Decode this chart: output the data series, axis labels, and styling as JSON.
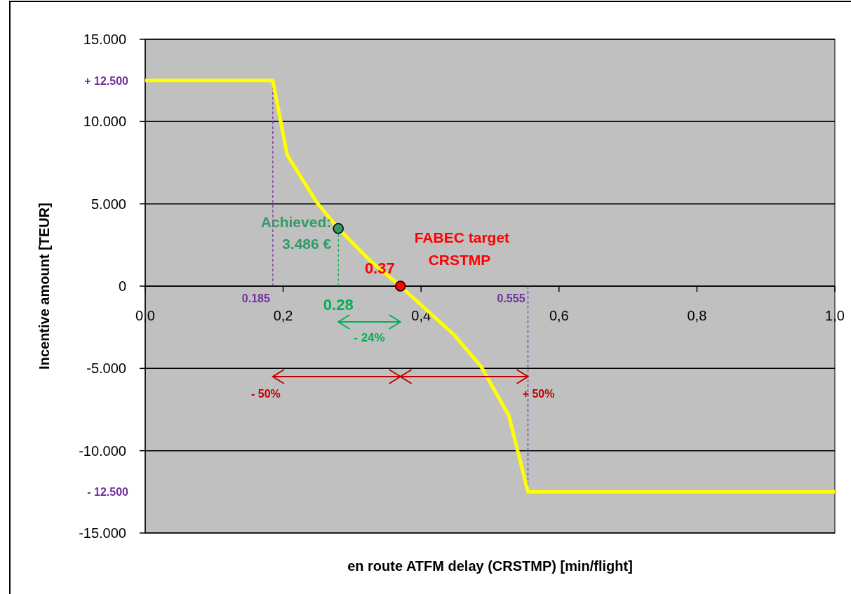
{
  "chart_data": {
    "type": "line",
    "xlabel": "en route ATFM delay (CRSTMP) [min/flight]",
    "ylabel": "Incentive amount [TEUR]",
    "xlim": [
      0,
      1
    ],
    "ylim": [
      -15000,
      15000
    ],
    "xticks": [
      {
        "value": 0,
        "label": "0,0"
      },
      {
        "value": 0.2,
        "label": "0,2"
      },
      {
        "value": 0.4,
        "label": "0,4"
      },
      {
        "value": 0.6,
        "label": "0,6"
      },
      {
        "value": 0.8,
        "label": "0,8"
      },
      {
        "value": 1,
        "label": "1,0"
      }
    ],
    "yticks": [
      {
        "value": -15000,
        "label": "-15.000"
      },
      {
        "value": -10000,
        "label": "-10.000"
      },
      {
        "value": -5000,
        "label": "-5.000"
      },
      0,
      {
        "value": 5000,
        "label": "5.000"
      },
      {
        "value": 10000,
        "label": "10.000"
      },
      {
        "value": 15000,
        "label": "15.000"
      }
    ],
    "grid": "y",
    "series": [
      {
        "color": "#ffff00",
        "marker": "none",
        "line_style": "solid",
        "x": [
          0,
          0.185,
          0.206,
          0.249,
          0.28,
          0.326,
          0.37,
          0.448,
          0.487,
          0.527,
          0.555,
          1
        ],
        "values": [
          12500,
          12500,
          7950,
          5070,
          3500,
          1550,
          0,
          -2970,
          -4880,
          -7840,
          -12500,
          -12500
        ]
      },
      {
        "type": "scatter",
        "color": "#339966",
        "marker": "circle",
        "x": [
          0.28
        ],
        "values": [
          3500
        ]
      },
      {
        "type": "scatter",
        "color": "#ff0000",
        "marker": "circle",
        "x": [
          0.37
        ],
        "values": [
          0
        ]
      }
    ],
    "ref_lines": [
      {
        "axis": "x",
        "value": 0.185,
        "label": "0.185",
        "color": "#7030a0",
        "line_style": "dashed"
      },
      {
        "axis": "x",
        "value": 0.28,
        "label": "0.28",
        "color": "#00b050",
        "line_style": "dashed"
      },
      {
        "axis": "x",
        "value": 0.555,
        "label": "0.555",
        "color": "#7030a0",
        "line_style": "dashed"
      }
    ],
    "annotations": [
      "Achieved:\n3.486 €",
      "0.37",
      "FABEC target\nCRSTMP",
      "- 24%",
      "- 50%",
      "+ 50%",
      "+ 12.500",
      "- 12.500"
    ]
  }
}
